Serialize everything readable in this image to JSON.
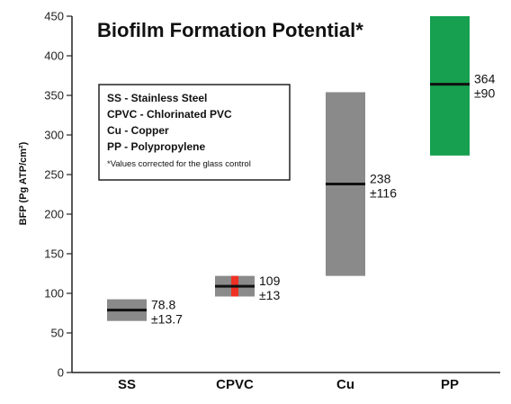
{
  "chart_data": {
    "type": "range-box",
    "title": "Biofilm Formation Potential*",
    "ylabel": "BFP (Pg ATP/cm²)",
    "ylim": [
      0,
      450
    ],
    "yticks": [
      "0",
      "50",
      "100",
      "150",
      "200",
      "250",
      "300",
      "350",
      "400",
      "450"
    ],
    "categories": [
      "SS",
      "CPVC",
      "Cu",
      "PP"
    ],
    "series": [
      {
        "category": "SS",
        "mean": 78.8,
        "sd": 13.7,
        "mean_label": "78.8",
        "sd_label": "±13.7",
        "color": "#8a8a8a"
      },
      {
        "category": "CPVC",
        "mean": 109,
        "sd": 13,
        "mean_label": "109",
        "sd_label": "±13",
        "color": "#8a8a8a",
        "marker_color": "#ee3124"
      },
      {
        "category": "Cu",
        "mean": 238,
        "sd": 116,
        "mean_label": "238",
        "sd_label": "±116",
        "color": "#8a8a8a"
      },
      {
        "category": "PP",
        "mean": 364,
        "sd": 90,
        "mean_label": "364",
        "sd_label": "±90",
        "color": "#16a050"
      }
    ],
    "legend": {
      "lines": [
        "SS - Stainless Steel",
        "CPVC - Chlorinated PVC",
        "Cu - Copper",
        "PP - Polypropylene"
      ],
      "note": "*Values corrected for the glass control"
    },
    "grid": false
  }
}
